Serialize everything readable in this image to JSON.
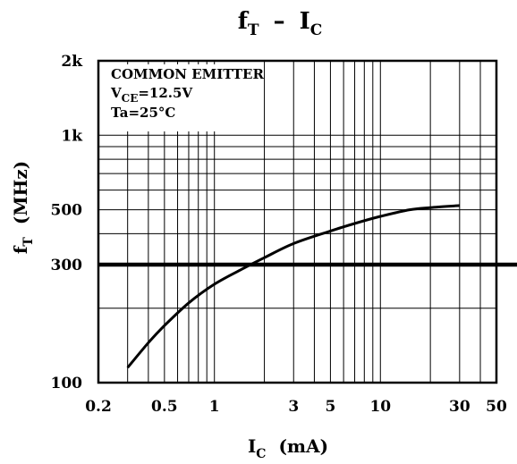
{
  "chart_data": {
    "type": "line",
    "title": "f_T – I_C",
    "title_parts": {
      "f": "f",
      "f_sub": "T",
      "dash": "–",
      "i": "I",
      "i_sub": "C"
    },
    "xlabel": "I_C (mA)",
    "xlabel_parts": {
      "main": "I",
      "sub": "C",
      "unit": "(mA)"
    },
    "ylabel": "f_T (MHz)",
    "ylabel_parts": {
      "main": "f",
      "sub": "T",
      "unit": "(MHz)"
    },
    "x_scale": "log",
    "y_scale": "log",
    "xlim": [
      0.2,
      50
    ],
    "ylim": [
      100,
      2000
    ],
    "grid": true,
    "x_ticks": [
      {
        "value": 0.2,
        "label": "0.2"
      },
      {
        "value": 0.5,
        "label": "0.5"
      },
      {
        "value": 1,
        "label": "1"
      },
      {
        "value": 3,
        "label": "3"
      },
      {
        "value": 5,
        "label": "5"
      },
      {
        "value": 10,
        "label": "10"
      },
      {
        "value": 30,
        "label": "30"
      },
      {
        "value": 50,
        "label": "50"
      }
    ],
    "y_ticks": [
      {
        "value": 100,
        "label": "100"
      },
      {
        "value": 300,
        "label": "300"
      },
      {
        "value": 500,
        "label": "500"
      },
      {
        "value": 1000,
        "label": "1k"
      },
      {
        "value": 2000,
        "label": "2k"
      }
    ],
    "annotation": {
      "line1": "COMMON EMITTER",
      "line2_main": "V",
      "line2_sub": "CE",
      "line2_rest": "=12.5V",
      "line3": "Ta=25°C"
    },
    "series": [
      {
        "x": [
          0.3,
          0.4,
          0.5,
          0.7,
          1.0,
          1.5,
          2.0,
          3.0,
          5.0,
          7.0,
          10.0,
          15.0,
          20.0,
          30.0
        ],
        "y": [
          115,
          145,
          170,
          210,
          250,
          290,
          320,
          365,
          410,
          440,
          470,
          500,
          510,
          520
        ]
      }
    ],
    "colors": {
      "line": "#000000",
      "grid": "#000000",
      "background": "#ffffff"
    }
  }
}
